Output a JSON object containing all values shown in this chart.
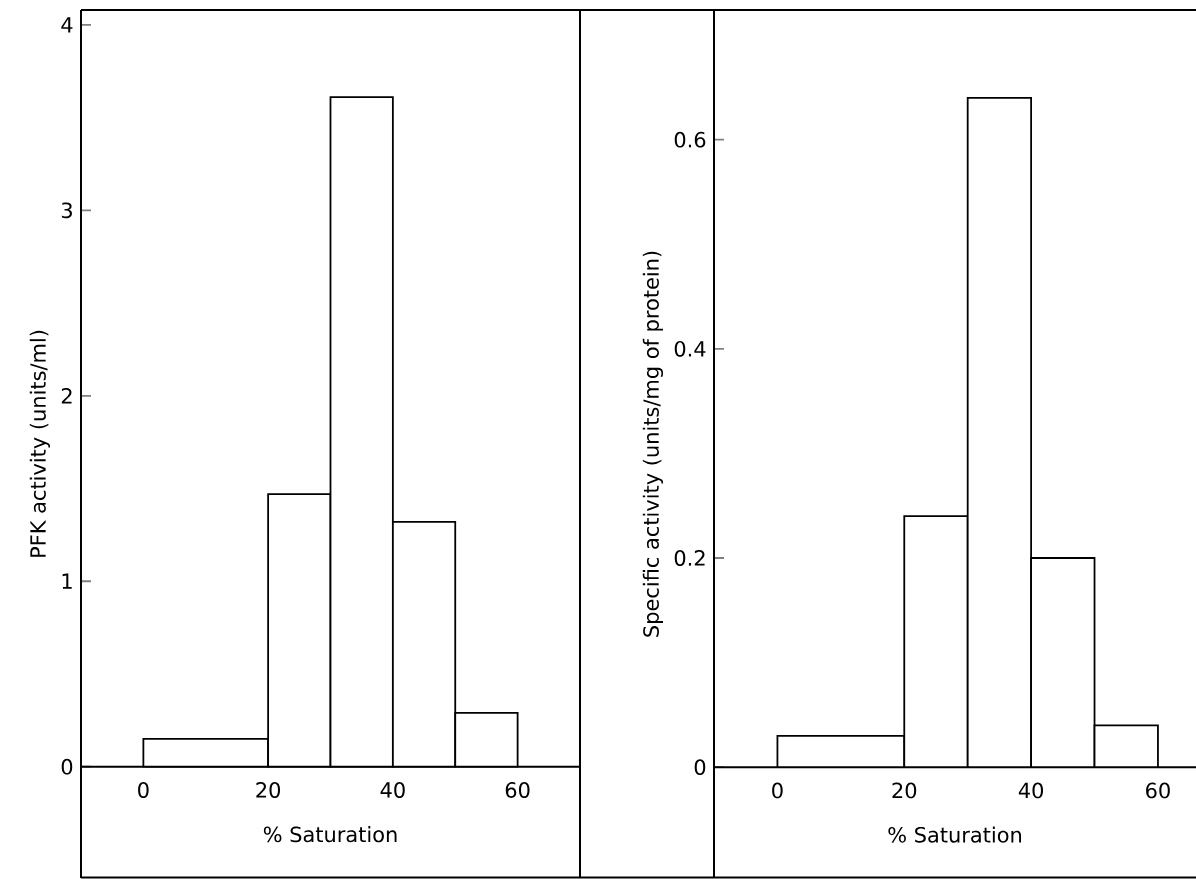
{
  "chart_data": [
    {
      "type": "histogram",
      "xlabel": "% Saturation",
      "ylabel": "PFK activity (units/ml)",
      "bins": [
        0,
        20,
        30,
        40,
        50,
        60
      ],
      "values": [
        0.15,
        1.47,
        3.61,
        1.32,
        0.29
      ],
      "color": "#ffffff",
      "xlim": [
        -10,
        70
      ],
      "ylim": [
        -0.6,
        4.08
      ],
      "xticks": [
        0,
        20,
        40,
        60
      ],
      "yticks": [
        0,
        1,
        2,
        3,
        4
      ]
    },
    {
      "type": "histogram",
      "xlabel": "% Saturation",
      "ylabel": "Specific activity (units/mg of protein)",
      "bins": [
        0,
        20,
        30,
        40,
        50,
        60
      ],
      "values": [
        0.03,
        0.24,
        0.64,
        0.2,
        0.04
      ],
      "color": "#ffffff",
      "xlim": [
        -10,
        66
      ],
      "ylim": [
        -0.106,
        0.724
      ],
      "xticks": [
        0,
        20,
        40,
        60
      ],
      "yticks": [
        0,
        0.2,
        0.4,
        0.6
      ]
    }
  ]
}
